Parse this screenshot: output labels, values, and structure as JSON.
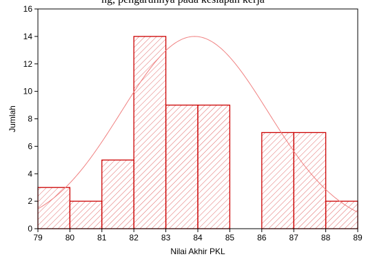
{
  "top_caption": "ng, pengaruhnya pada kesiapan kerja",
  "chart_data": {
    "type": "bar",
    "title": "",
    "xlabel": "Nilai Akhir PKL",
    "ylabel": "Jumlah",
    "xlim": [
      79,
      89
    ],
    "ylim": [
      0,
      16
    ],
    "xticks": [
      79,
      80,
      81,
      82,
      83,
      84,
      85,
      86,
      87,
      88,
      89
    ],
    "yticks": [
      0,
      2,
      4,
      6,
      8,
      10,
      12,
      14,
      16
    ],
    "bins": [
      {
        "from": 79,
        "to": 80,
        "count": 3
      },
      {
        "from": 80,
        "to": 81,
        "count": 2
      },
      {
        "from": 81,
        "to": 82,
        "count": 5
      },
      {
        "from": 82,
        "to": 83,
        "count": 14
      },
      {
        "from": 83,
        "to": 84,
        "count": 9
      },
      {
        "from": 84,
        "to": 85,
        "count": 9
      },
      {
        "from": 85,
        "to": 86,
        "count": 0
      },
      {
        "from": 86,
        "to": 87,
        "count": 7
      },
      {
        "from": 87,
        "to": 88,
        "count": 7
      },
      {
        "from": 88,
        "to": 89,
        "count": 2
      }
    ],
    "normal_curve": {
      "mean": 83.9,
      "sd": 2.3,
      "peak": 14
    },
    "colors": {
      "bar_edge": "#cc0000",
      "hatch": "#e06666",
      "curve": "#f08080",
      "axis": "#000000"
    },
    "grid": false,
    "legend": "none"
  }
}
